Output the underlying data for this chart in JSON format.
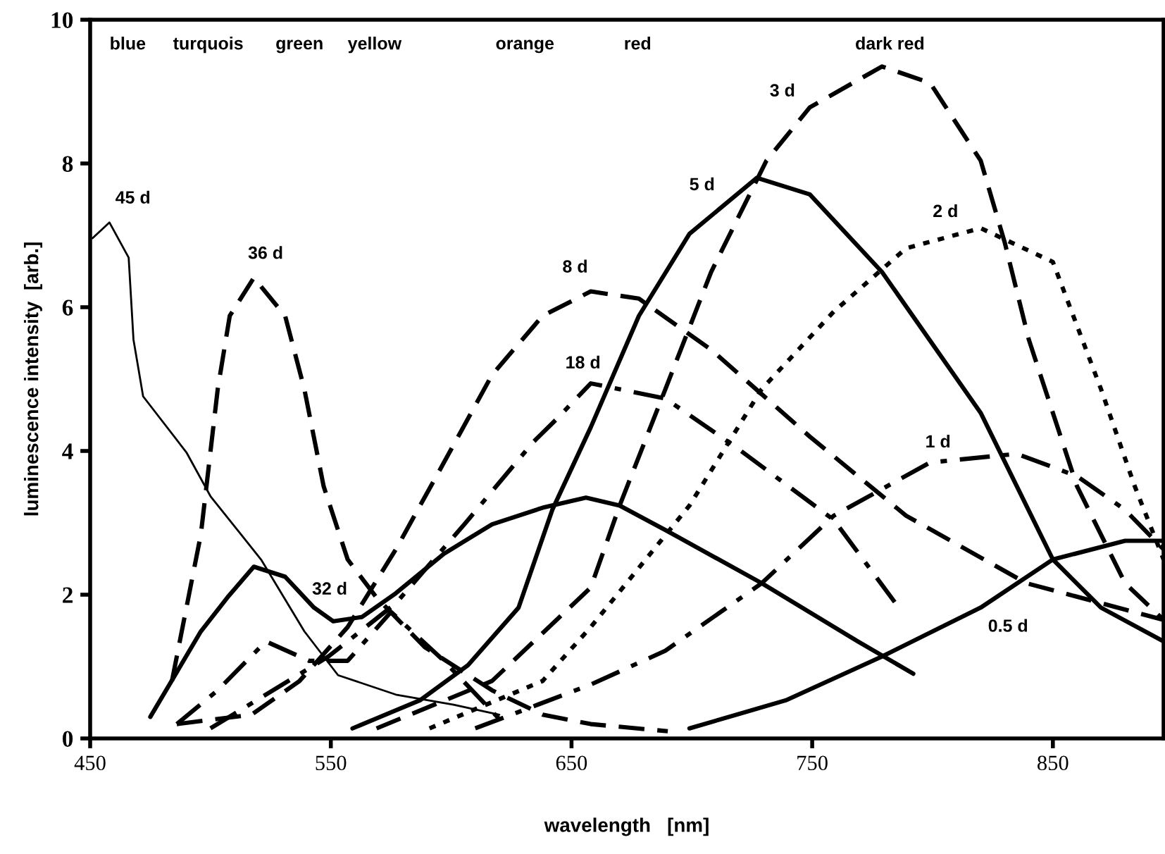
{
  "chart_data": {
    "type": "line",
    "xlabel": "wavelength   [nm]",
    "ylabel": "luminescence intensity  [arb.]",
    "xlim": [
      450,
      896
    ],
    "ylim": [
      0,
      10
    ],
    "xticks": [
      450,
      550,
      650,
      750,
      850
    ],
    "yticks": [
      0,
      2,
      4,
      6,
      8,
      10
    ],
    "grid": false,
    "legend": false,
    "marker": "none",
    "series": [
      {
        "name": "45 d",
        "color": "#000000",
        "line_style": "solid",
        "x": [
          451,
          458,
          466,
          468,
          472,
          490,
          500,
          521,
          539,
          553,
          577,
          601,
          620
        ],
        "values": [
          6.96,
          7.18,
          6.69,
          5.55,
          4.76,
          3.98,
          3.37,
          2.49,
          1.49,
          0.88,
          0.61,
          0.47,
          0.33
        ]
      },
      {
        "name": "36 d",
        "color": "#000000",
        "line_style": "dashed",
        "x": [
          484,
          496,
          503,
          508,
          518,
          531,
          539,
          547,
          557,
          569,
          589,
          617,
          638,
          658,
          690
        ],
        "values": [
          0.8,
          2.84,
          4.86,
          5.88,
          6.41,
          5.88,
          4.86,
          3.51,
          2.49,
          1.96,
          1.27,
          0.67,
          0.33,
          0.2,
          0.1
        ]
      },
      {
        "name": "32 d",
        "color": "#000000",
        "line_style": "solid",
        "x": [
          475,
          496,
          507,
          518,
          531,
          543,
          551,
          563,
          577,
          597,
          617,
          638,
          656,
          670,
          689,
          729,
          769,
          792
        ],
        "values": [
          0.3,
          1.49,
          1.96,
          2.39,
          2.25,
          1.82,
          1.63,
          1.69,
          2.02,
          2.57,
          2.98,
          3.21,
          3.35,
          3.24,
          2.9,
          2.16,
          1.35,
          0.9
        ]
      },
      {
        "color": "#000000",
        "line_style": "dashdot",
        "x": [
          486,
          503,
          523,
          541,
          557,
          575,
          597,
          620
        ],
        "values": [
          0.2,
          0.67,
          1.35,
          1.08,
          1.08,
          1.76,
          1.08,
          0.27
        ]
      },
      {
        "name": "8 d",
        "color": "#000000",
        "line_style": "dashed",
        "x": [
          486,
          517,
          537,
          557,
          577,
          597,
          617,
          638,
          658,
          678,
          708,
          749,
          789,
          839,
          896
        ],
        "values": [
          0.2,
          0.33,
          0.8,
          1.55,
          2.63,
          3.84,
          5.06,
          5.88,
          6.22,
          6.12,
          5.41,
          4.2,
          3.1,
          2.16,
          1.65
        ]
      },
      {
        "name": "18 d",
        "color": "#000000",
        "line_style": "dashdot",
        "x": [
          500,
          549,
          577,
          606,
          634,
          644,
          658,
          689,
          718,
          759,
          786
        ],
        "values": [
          0.14,
          1.14,
          1.88,
          3.0,
          4.12,
          4.45,
          4.94,
          4.73,
          4.06,
          3.04,
          1.82
        ]
      },
      {
        "name": "5 d",
        "color": "#000000",
        "line_style": "solid",
        "x": [
          559,
          587,
          607,
          628,
          642,
          658,
          678,
          699,
          727,
          749,
          779,
          820,
          850,
          870,
          896
        ],
        "values": [
          0.14,
          0.53,
          1.02,
          1.82,
          3.18,
          4.33,
          5.88,
          7.02,
          7.8,
          7.57,
          6.49,
          4.53,
          2.49,
          1.82,
          1.35
        ]
      },
      {
        "name": "3 d",
        "color": "#000000",
        "line_style": "dashed",
        "x": [
          569,
          617,
          658,
          670,
          689,
          708,
          731,
          749,
          779,
          799,
          820,
          830,
          840,
          860,
          880,
          896
        ],
        "values": [
          0.14,
          0.8,
          2.1,
          3.24,
          4.86,
          6.49,
          8.04,
          8.78,
          9.35,
          9.12,
          8.04,
          6.9,
          5.55,
          3.51,
          2.16,
          1.65
        ]
      },
      {
        "name": "2 d",
        "color": "#000000",
        "line_style": "dotted",
        "x": [
          591,
          638,
          658,
          699,
          729,
          759,
          789,
          820,
          850,
          870,
          884,
          896
        ],
        "values": [
          0.14,
          0.8,
          1.55,
          3.24,
          4.86,
          5.94,
          6.82,
          7.1,
          6.63,
          4.86,
          3.51,
          2.49
        ]
      },
      {
        "name": "1 d",
        "color": "#000000",
        "line_style": "dashdot",
        "x": [
          610,
          658,
          689,
          729,
          759,
          799,
          835,
          860,
          880,
          896
        ],
        "values": [
          0.14,
          0.75,
          1.22,
          2.16,
          3.1,
          3.84,
          3.96,
          3.65,
          3.18,
          2.63
        ]
      },
      {
        "name": "0.5 d",
        "color": "#000000",
        "line_style": "solid",
        "x": [
          699,
          739,
          779,
          820,
          850,
          880,
          896
        ],
        "values": [
          0.14,
          0.53,
          1.14,
          1.82,
          2.49,
          2.75,
          2.75
        ]
      }
    ],
    "annotations": [
      "blue",
      "turquois",
      "green",
      "yellow",
      "orange",
      "red",
      "dark red"
    ]
  }
}
